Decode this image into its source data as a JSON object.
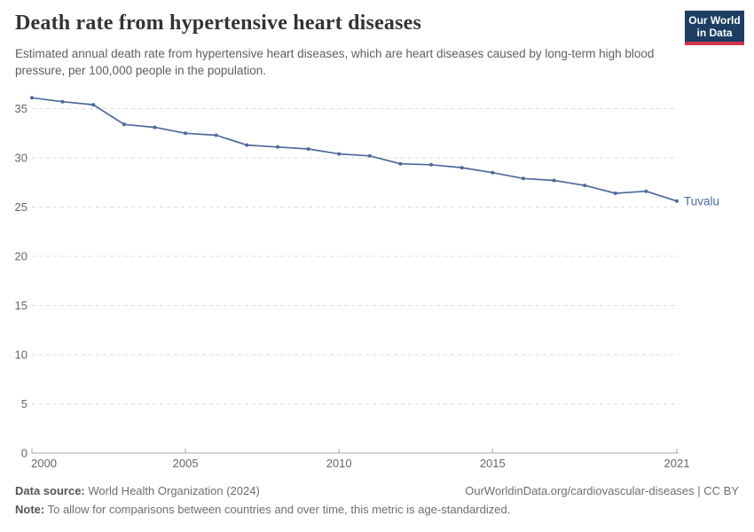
{
  "header": {
    "title": "Death rate from hypertensive heart diseases",
    "subtitle": "Estimated annual death rate from hypertensive heart diseases, which are heart diseases caused by long-term high blood pressure, per 100,000 people in the population.",
    "logo": {
      "line1": "Our World",
      "line2": "in Data"
    }
  },
  "chart_data": {
    "type": "line",
    "title": "Death rate from hypertensive heart diseases",
    "x": [
      2000,
      2001,
      2002,
      2003,
      2004,
      2005,
      2006,
      2007,
      2008,
      2009,
      2010,
      2011,
      2012,
      2013,
      2014,
      2015,
      2016,
      2017,
      2018,
      2019,
      2020,
      2021
    ],
    "series": [
      {
        "name": "Tuvalu",
        "color": "#4C6A9C",
        "values": [
          36.1,
          35.7,
          35.4,
          33.4,
          33.1,
          32.5,
          32.3,
          31.3,
          31.1,
          30.9,
          30.4,
          30.2,
          29.4,
          29.3,
          29.0,
          28.5,
          27.9,
          27.7,
          27.2,
          26.4,
          26.6,
          25.6
        ]
      }
    ],
    "xlabel": "",
    "ylabel": "",
    "xlim": [
      2000,
      2021
    ],
    "ylim": [
      0,
      37
    ],
    "x_ticks": [
      2000,
      2005,
      2010,
      2015,
      2021
    ],
    "y_ticks": [
      0,
      5,
      10,
      15,
      20,
      25,
      30,
      35
    ],
    "grid": "horizontal-dashed",
    "legend_position": "end-of-line-label"
  },
  "footer": {
    "source_label": "Data source:",
    "source_text": " World Health Organization (2024)",
    "link_text": "OurWorldinData.org/cardiovascular-diseases | CC BY",
    "note_label": "Note:",
    "note_text": " To allow for comparisons between countries and over time, this metric is age-standardized."
  },
  "colors": {
    "line": "#4C6A9C",
    "logo_bg": "#1d3d63",
    "logo_accent": "#d3334a",
    "grid": "#dddddd",
    "axis": "#a5a5a5",
    "tick_label": "#666666",
    "title_text": "#333333",
    "subtitle_text": "#5b5f66"
  }
}
